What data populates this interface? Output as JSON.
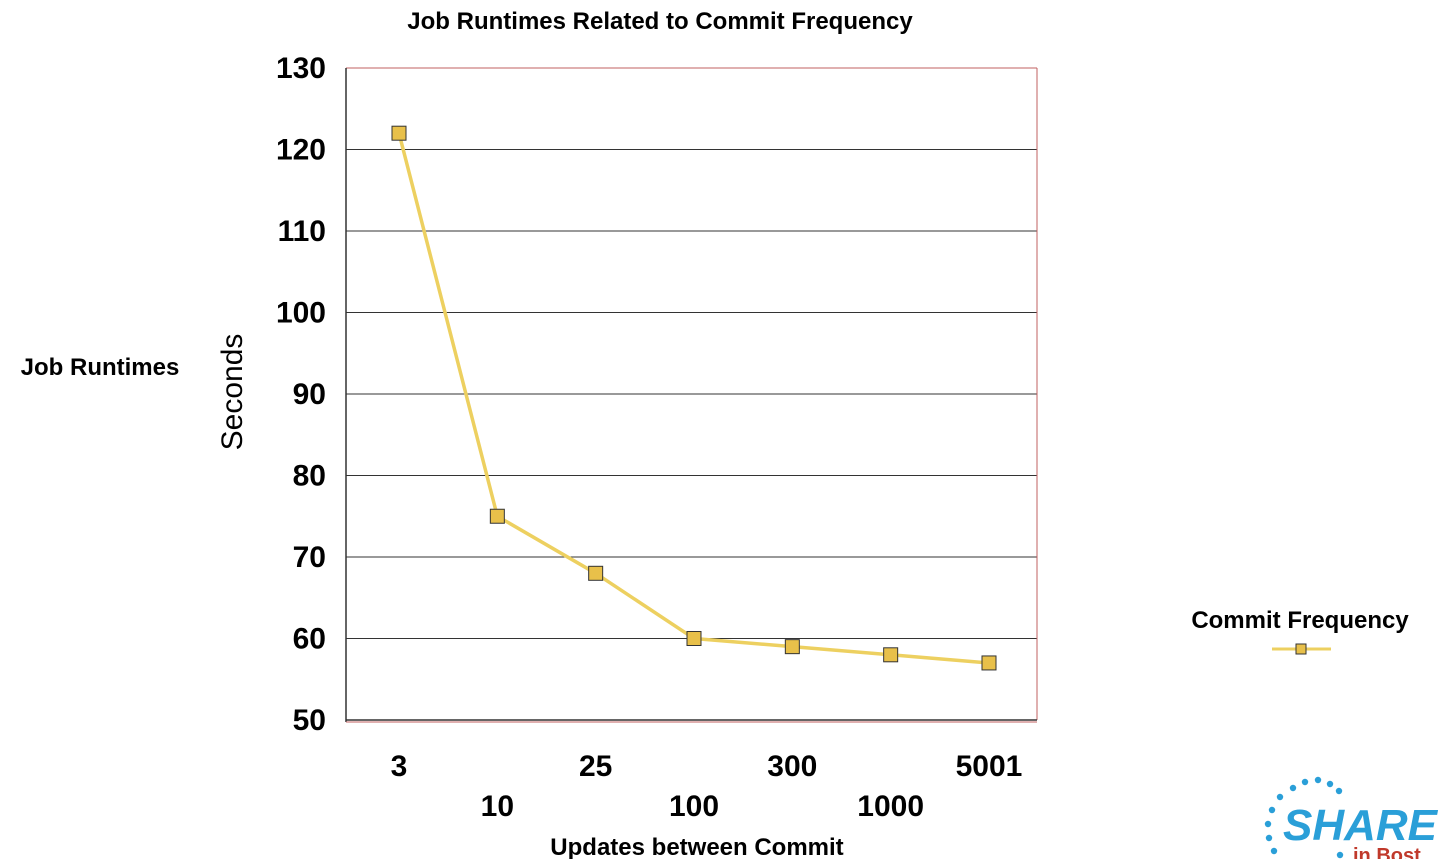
{
  "chart_data": {
    "type": "line",
    "title": "Job Runtimes Related to  Commit Frequency",
    "side_label": "Job Runtimes",
    "ylabel": "Seconds",
    "xlabel": "Updates between Commit",
    "categories": [
      "3",
      "10",
      "25",
      "100",
      "300",
      "1000",
      "5001"
    ],
    "series": [
      {
        "name": "Commit Frequency",
        "values": [
          122,
          75,
          68,
          60,
          59,
          58,
          57
        ]
      }
    ],
    "ylim": [
      50,
      130
    ],
    "yticks": [
      50,
      60,
      70,
      80,
      90,
      100,
      110,
      120,
      130
    ],
    "grid": true,
    "legend_position": "right",
    "colors": {
      "line": "#edd060",
      "marker_fill": "#e8c04a",
      "marker_stroke": "#333333",
      "plot_border": "#c06060",
      "gridline": "#333333",
      "logo": "#2a9fd8"
    }
  },
  "logo": {
    "text": "SHARE",
    "subtext": "in Bost"
  }
}
